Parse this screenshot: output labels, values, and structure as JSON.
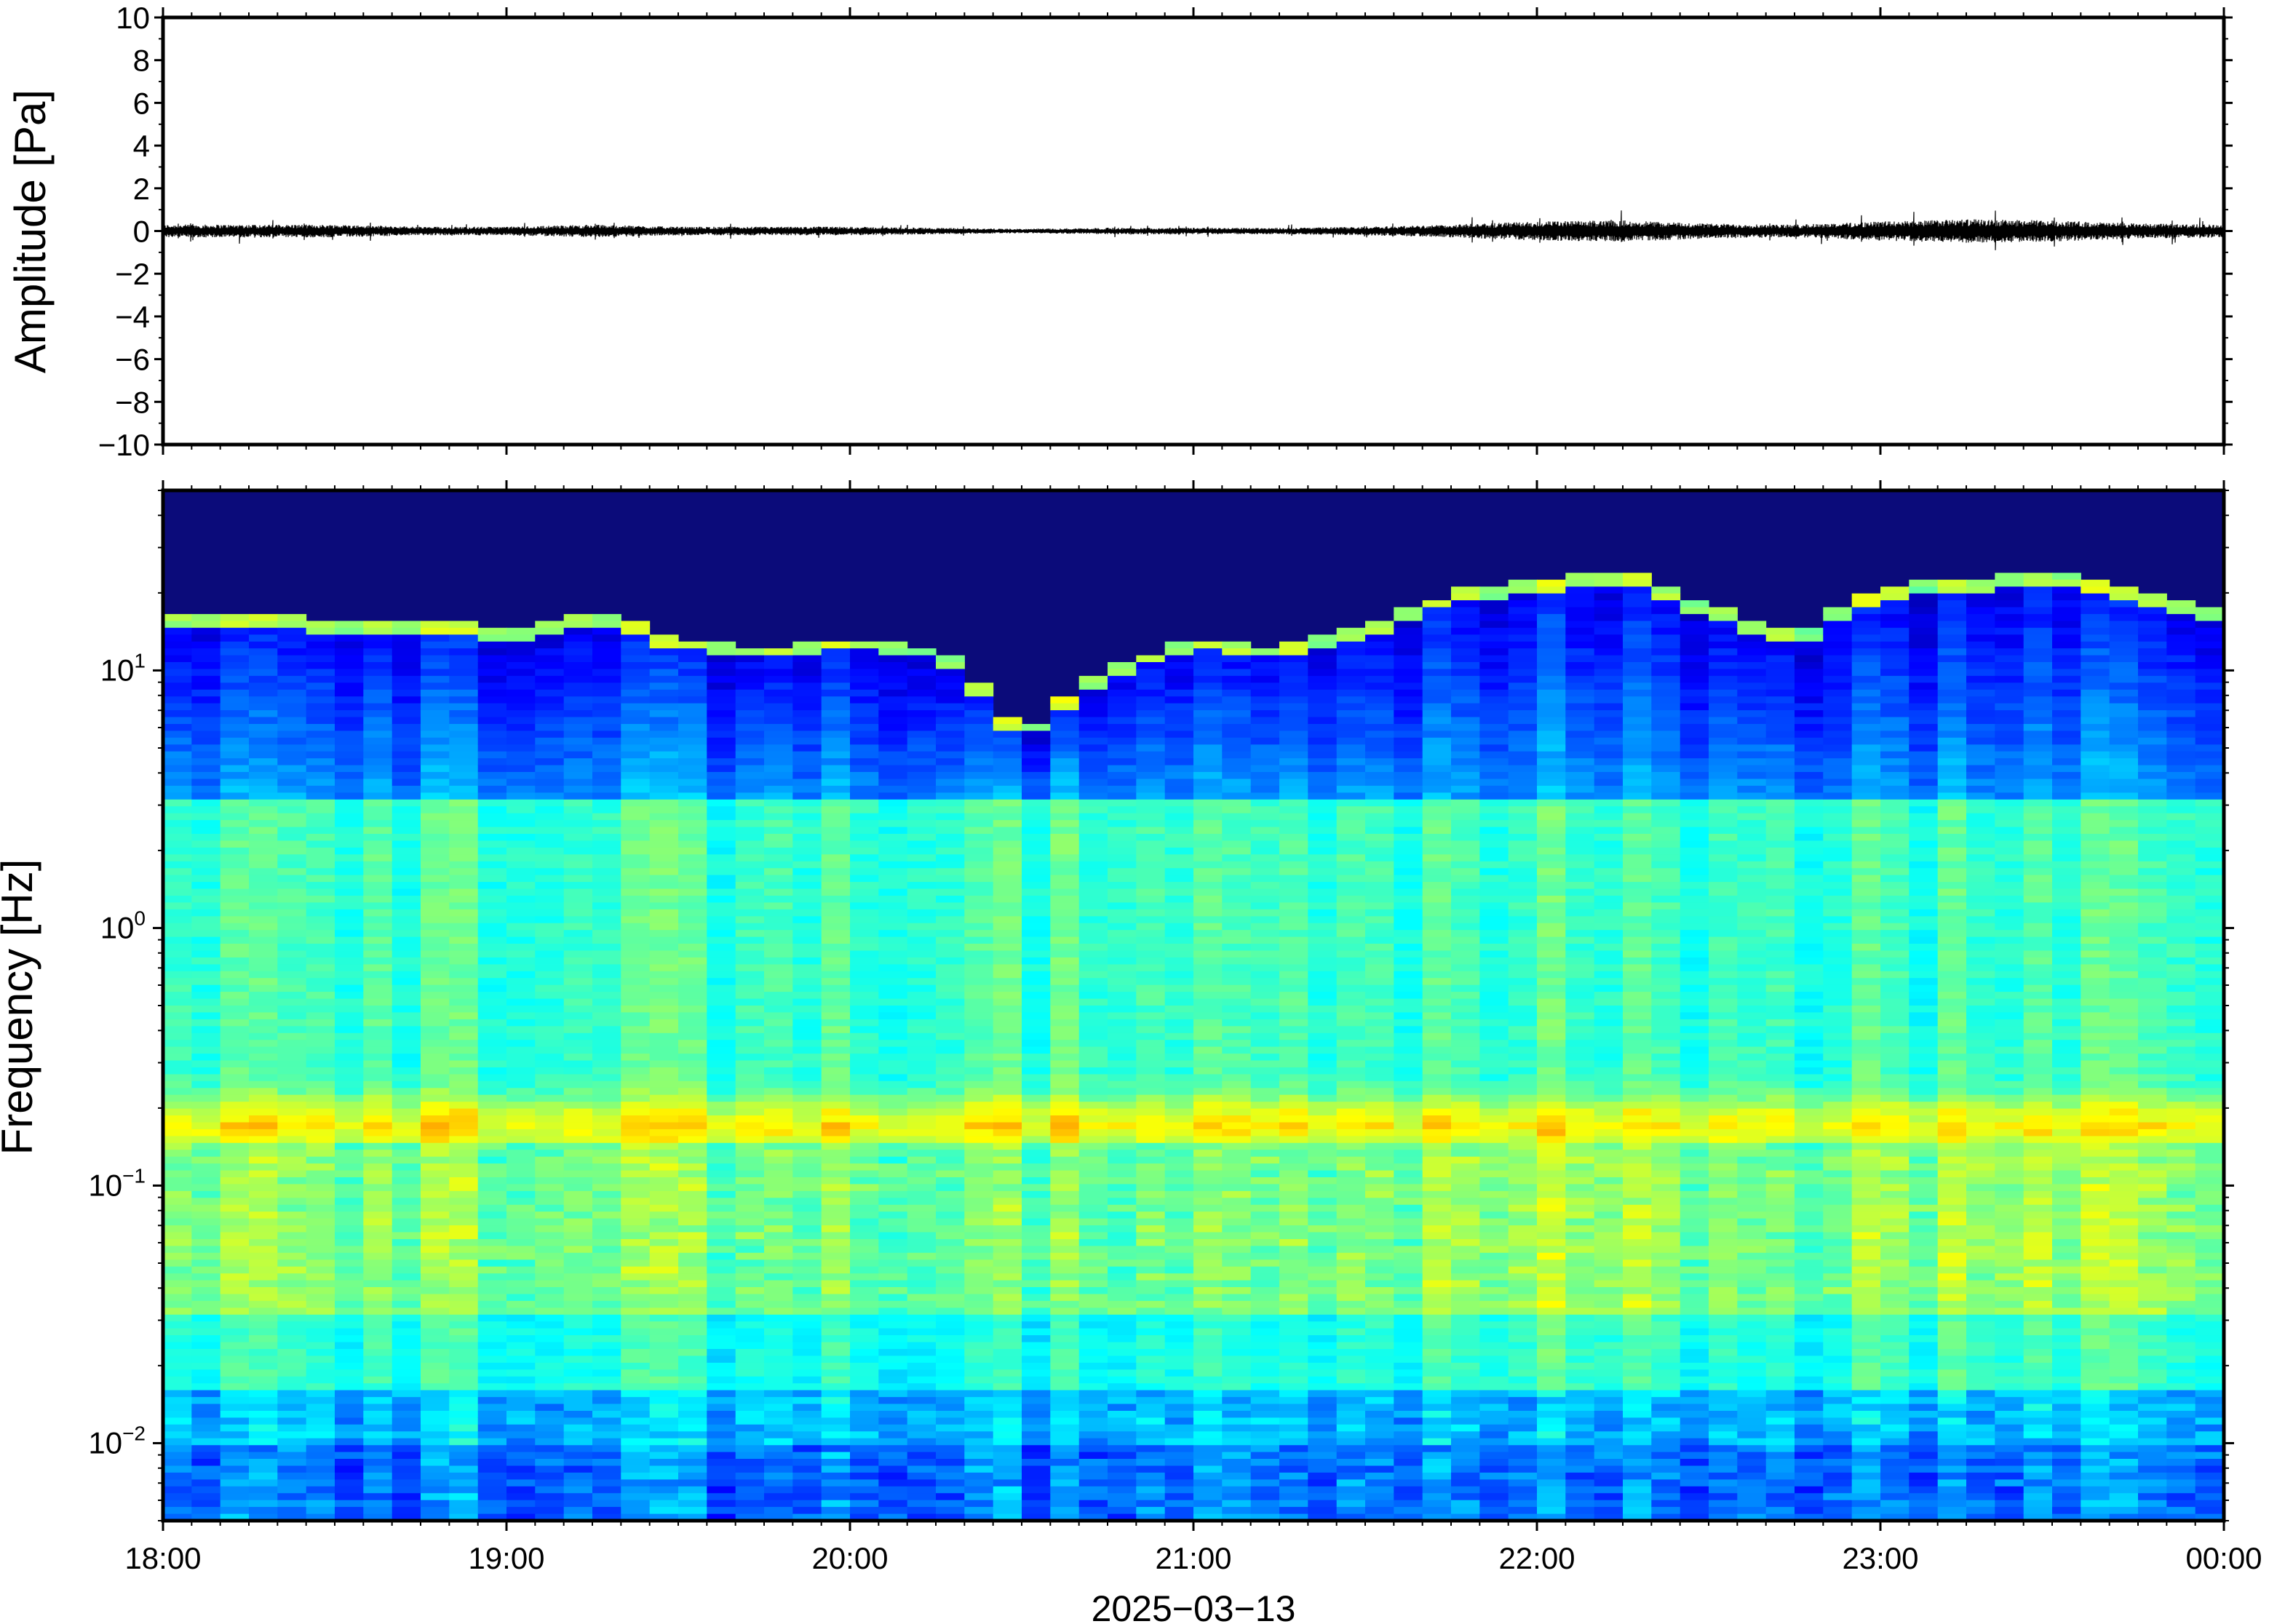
{
  "chart_data": [
    {
      "type": "line",
      "panel": "waveform",
      "ylabel": "Amplitude [Pa]",
      "ylim": [
        -10,
        10
      ],
      "yticks": [
        -10,
        -8,
        -6,
        -4,
        -2,
        0,
        2,
        4,
        6,
        8,
        10
      ],
      "ytick_labels": [
        "−10",
        "−8",
        "−6",
        "−4",
        "−2",
        "0",
        "2",
        "4",
        "6",
        "8",
        "10"
      ],
      "x_range": [
        "18:00",
        "00:00"
      ],
      "envelope": {
        "times": [
          "18:00",
          "18:15",
          "18:30",
          "18:45",
          "19:00",
          "19:15",
          "19:30",
          "19:45",
          "20:00",
          "20:15",
          "20:30",
          "20:45",
          "21:00",
          "21:15",
          "21:30",
          "21:45",
          "22:00",
          "22:15",
          "22:30",
          "22:45",
          "23:00",
          "23:15",
          "23:30",
          "23:45",
          "00:00"
        ],
        "peak_amplitude_pa": [
          0.3,
          0.3,
          0.3,
          0.2,
          0.2,
          0.3,
          0.2,
          0.2,
          0.2,
          0.15,
          0.1,
          0.15,
          0.15,
          0.15,
          0.2,
          0.3,
          0.45,
          0.5,
          0.35,
          0.3,
          0.45,
          0.55,
          0.5,
          0.35,
          0.3
        ]
      },
      "line_color": "#000000"
    },
    {
      "type": "heatmap",
      "panel": "spectrogram",
      "ylabel": "Frequency [Hz]",
      "yscale": "log",
      "ylim_hz": [
        0.005,
        50
      ],
      "yticks": [
        0.01,
        0.1,
        1,
        10
      ],
      "ytick_labels": [
        {
          "base": "10",
          "exp": "−2"
        },
        {
          "base": "10",
          "exp": "−1"
        },
        {
          "base": "10",
          "exp": "0"
        },
        {
          "base": "10",
          "exp": "1"
        }
      ],
      "xlabel": "2025−03−13",
      "xticks": [
        "18:00",
        "19:00",
        "20:00",
        "21:00",
        "22:00",
        "23:00",
        "00:00"
      ],
      "colormap": "jet",
      "colormap_stops": [
        "#00007f",
        "#0000ff",
        "#007fff",
        "#00ffff",
        "#7fff7f",
        "#ffff00",
        "#ff7f00",
        "#ff0000"
      ],
      "background_color": "#0b0b7a",
      "noise_ceiling_hz": {
        "times": [
          "18:00",
          "18:15",
          "18:30",
          "18:45",
          "19:00",
          "19:15",
          "19:30",
          "19:45",
          "20:00",
          "20:15",
          "20:30",
          "20:45",
          "21:00",
          "21:15",
          "21:30",
          "21:45",
          "22:00",
          "22:15",
          "22:30",
          "22:45",
          "23:00",
          "23:15",
          "23:30",
          "23:45",
          "00:00"
        ],
        "values": [
          15,
          15,
          14,
          14,
          13,
          15,
          12,
          11,
          12,
          11,
          5,
          9,
          12,
          11,
          13,
          18,
          20,
          22,
          16,
          12,
          19,
          20,
          22,
          18,
          15
        ]
      },
      "microseism_band_hz": [
        0.15,
        0.22
      ],
      "microseism_peak_hz": 0.18
    }
  ]
}
